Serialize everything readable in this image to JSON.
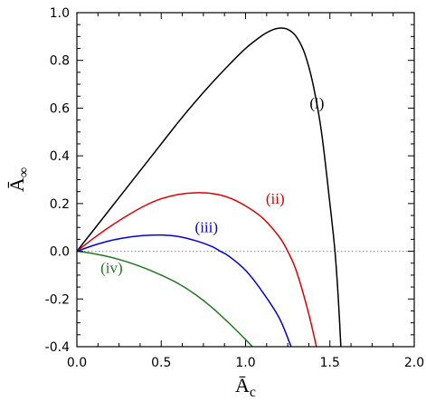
{
  "chart_data": {
    "type": "line",
    "xlabel": "Ā",
    "xlabel_sub": "c",
    "ylabel": "Ā",
    "ylabel_sub": "∞",
    "xlim": [
      0.0,
      2.0
    ],
    "ylim": [
      -0.4,
      1.0
    ],
    "x_ticks": [
      0.0,
      0.5,
      1.0,
      1.5,
      2.0
    ],
    "x_tick_labels": [
      "0.0",
      "0.5",
      "1.0",
      "1.5",
      "2.0"
    ],
    "y_ticks": [
      -0.4,
      -0.2,
      0.0,
      0.2,
      0.4,
      0.6,
      0.8,
      1.0
    ],
    "y_tick_labels": [
      "-0.4",
      "-0.2",
      "0.0",
      "0.2",
      "0.4",
      "0.6",
      "0.8",
      "1.0"
    ],
    "reference_line": {
      "y": 0.0,
      "style": "dotted",
      "color": "#888888"
    },
    "grid": false,
    "series": [
      {
        "name": "(i)",
        "color": "#000000",
        "points": [
          [
            0.0,
            0.0
          ],
          [
            0.1,
            0.09
          ],
          [
            0.2,
            0.18
          ],
          [
            0.3,
            0.27
          ],
          [
            0.4,
            0.36
          ],
          [
            0.5,
            0.45
          ],
          [
            0.6,
            0.54
          ],
          [
            0.7,
            0.625
          ],
          [
            0.8,
            0.705
          ],
          [
            0.9,
            0.78
          ],
          [
            1.0,
            0.85
          ],
          [
            1.1,
            0.905
          ],
          [
            1.15,
            0.925
          ],
          [
            1.2,
            0.935
          ],
          [
            1.25,
            0.93
          ],
          [
            1.3,
            0.9
          ],
          [
            1.35,
            0.83
          ],
          [
            1.4,
            0.7
          ],
          [
            1.45,
            0.5
          ],
          [
            1.5,
            0.2
          ],
          [
            1.53,
            0.0
          ],
          [
            1.55,
            -0.2
          ],
          [
            1.565,
            -0.4
          ]
        ],
        "label_at": [
          1.38,
          0.6
        ]
      },
      {
        "name": "(ii)",
        "color": "#dd0000",
        "points": [
          [
            0.0,
            0.0
          ],
          [
            0.1,
            0.055
          ],
          [
            0.2,
            0.105
          ],
          [
            0.3,
            0.15
          ],
          [
            0.4,
            0.19
          ],
          [
            0.5,
            0.22
          ],
          [
            0.6,
            0.238
          ],
          [
            0.7,
            0.245
          ],
          [
            0.8,
            0.242
          ],
          [
            0.9,
            0.225
          ],
          [
            1.0,
            0.19
          ],
          [
            1.1,
            0.14
          ],
          [
            1.2,
            0.06
          ],
          [
            1.25,
            0.0
          ],
          [
            1.3,
            -0.08
          ],
          [
            1.37,
            -0.25
          ],
          [
            1.42,
            -0.4
          ]
        ],
        "label_at": [
          1.12,
          0.2
        ]
      },
      {
        "name": "(iii)",
        "color": "#0000dd",
        "points": [
          [
            0.0,
            0.0
          ],
          [
            0.1,
            0.025
          ],
          [
            0.2,
            0.045
          ],
          [
            0.3,
            0.058
          ],
          [
            0.4,
            0.066
          ],
          [
            0.5,
            0.068
          ],
          [
            0.6,
            0.062
          ],
          [
            0.7,
            0.045
          ],
          [
            0.8,
            0.02
          ],
          [
            0.85,
            0.0
          ],
          [
            0.9,
            -0.02
          ],
          [
            1.0,
            -0.08
          ],
          [
            1.1,
            -0.17
          ],
          [
            1.2,
            -0.28
          ],
          [
            1.27,
            -0.4
          ]
        ],
        "label_at": [
          0.7,
          0.08
        ]
      },
      {
        "name": "(iv)",
        "color": "#227722",
        "points": [
          [
            0.0,
            0.0
          ],
          [
            0.1,
            -0.01
          ],
          [
            0.2,
            -0.025
          ],
          [
            0.3,
            -0.045
          ],
          [
            0.4,
            -0.07
          ],
          [
            0.5,
            -0.1
          ],
          [
            0.6,
            -0.135
          ],
          [
            0.7,
            -0.18
          ],
          [
            0.8,
            -0.235
          ],
          [
            0.9,
            -0.3
          ],
          [
            1.0,
            -0.37
          ],
          [
            1.04,
            -0.4
          ]
        ],
        "label_at": [
          0.14,
          -0.09
        ]
      }
    ]
  }
}
